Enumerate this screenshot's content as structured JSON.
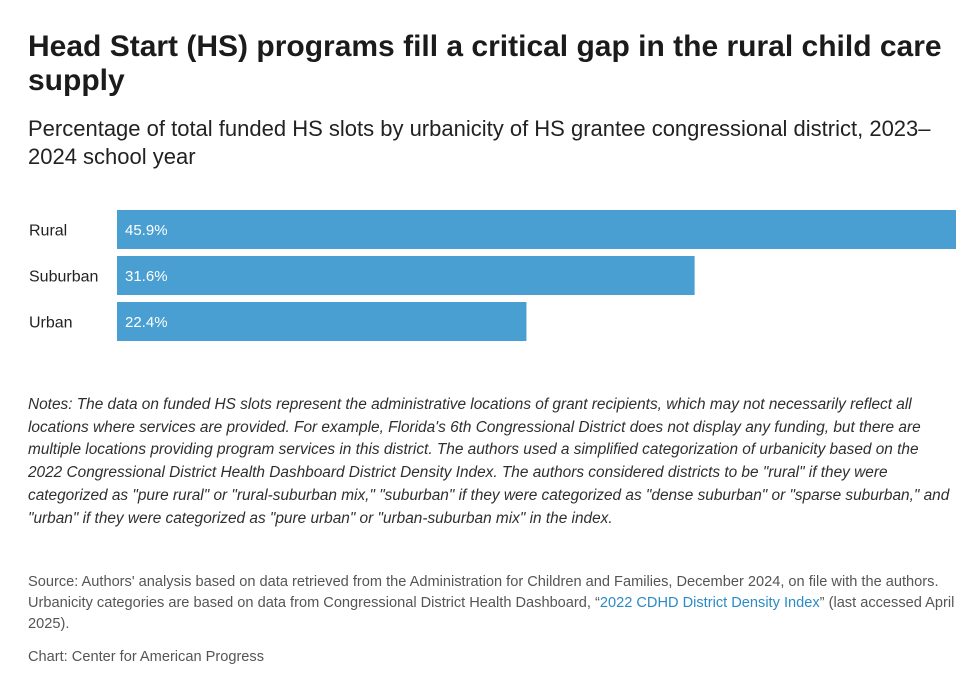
{
  "title": "Head Start (HS) programs fill a critical gap in the rural child care supply",
  "subtitle": "Percentage of total funded HS slots by urbanicity of HS grantee congressional district, 2023–2024 school year",
  "chart_data": {
    "type": "bar",
    "orientation": "horizontal",
    "categories": [
      "Rural",
      "Suburban",
      "Urban"
    ],
    "values": [
      45.9,
      31.6,
      22.4
    ],
    "value_labels": [
      "45.9%",
      "31.6%",
      "22.4%"
    ],
    "bar_color": "#4a9fd2",
    "xlim": [
      0,
      45.9
    ],
    "grid": false,
    "legend": "none"
  },
  "notes": "Notes: The data on funded HS slots represent the administrative locations of grant recipients, which may not necessarily reflect all locations where services are provided. For example, Florida's 6th Congressional District does not display any funding, but there are multiple locations providing program services in this district. The authors used a simplified categorization of urbanicity based on the 2022 Congressional District Health Dashboard District Density Index. The authors considered districts to be \"rural\" if they were categorized as \"pure rural\" or \"rural-suburban mix,\" \"suburban\" if they were categorized as \"dense suburban\" or \"sparse suburban,\" and \"urban\" if they were categorized as \"pure urban\" or \"urban-suburban mix\" in the index.",
  "source": {
    "before": "Source: Authors' analysis based on data retrieved from the Administration for Children and Families, December 2024, on file with the authors. Urbanicity categories are based on data from Congressional District Health Dashboard, “",
    "link_text": "2022 CDHD District Density Index",
    "after": "” (last accessed April 2025)."
  },
  "credit": "Chart: Center for American Progress",
  "colors": {
    "link": "#2a8bc6",
    "bar": "#4a9fd2"
  }
}
